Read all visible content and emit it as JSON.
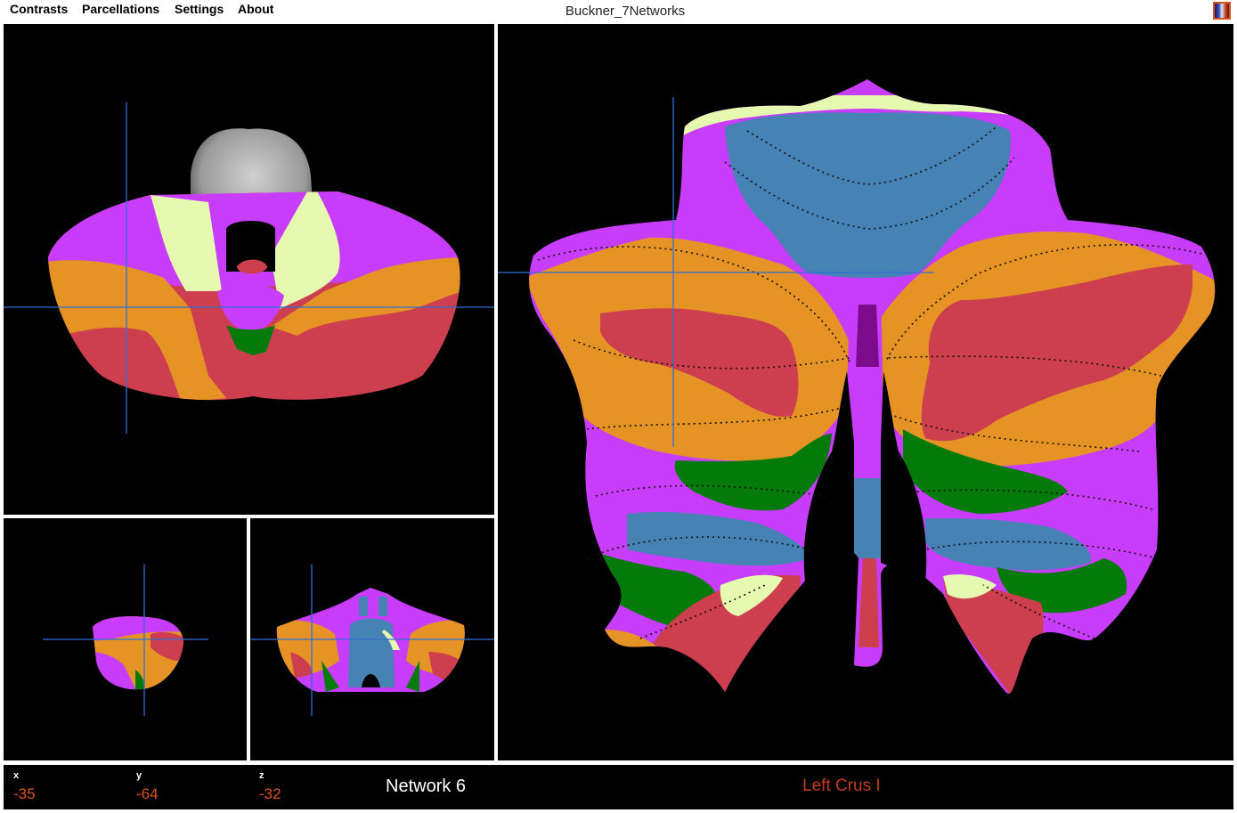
{
  "menu": {
    "contrasts": "Contrasts",
    "parcellations": "Parcellations",
    "settings": "Settings",
    "about": "About"
  },
  "title": "Buckner_7Networks",
  "colormap_icon": "colormap-icon",
  "palette": {
    "network1_purple": "#c83cfb",
    "network2_blue": "#4682b4",
    "network3_green": "#037a0a",
    "network4_violet": "#7d0c8c",
    "network5_cream": "#e5f9b0",
    "network6_orange": "#e59325",
    "network7_red": "#cd3e4e",
    "crosshair": "#2f6fd6"
  },
  "status": {
    "x_label": "x",
    "x_value": "-35",
    "y_label": "y",
    "y_value": "-64",
    "z_label": "z",
    "z_value": "-32",
    "network": "Network 6",
    "region": "Left Crus I"
  }
}
